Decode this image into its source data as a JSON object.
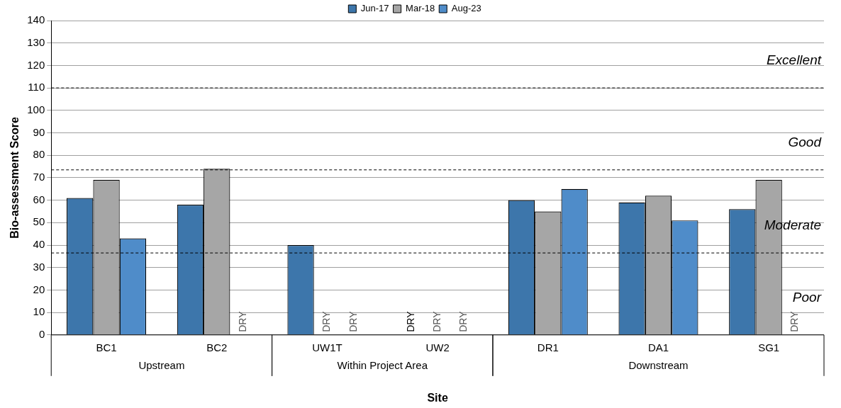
{
  "chart_data": {
    "type": "bar",
    "xlabel": "Site",
    "ylabel": "Bio-assessment Score",
    "categories": [
      "BC1",
      "BC2",
      "UW1T",
      "UW2",
      "DR1",
      "DA1",
      "SG1"
    ],
    "series": [
      {
        "name": "Jun-17",
        "color": "#3d76ab",
        "values": [
          61,
          58,
          40,
          null,
          60,
          59,
          56
        ],
        "value_labels": [
          null,
          null,
          null,
          "DRY",
          null,
          null,
          null
        ]
      },
      {
        "name": "Mar-18",
        "color": "#a6a6a6",
        "values": [
          69,
          74,
          null,
          null,
          55,
          62,
          69
        ],
        "value_labels": [
          null,
          null,
          "DRY",
          "DRY",
          null,
          null,
          null
        ]
      },
      {
        "name": "Aug-23",
        "color": "#4f8cc9",
        "values": [
          43,
          null,
          null,
          null,
          65,
          51,
          null
        ],
        "value_labels": [
          null,
          "DRY",
          "DRY",
          "DRY",
          null,
          null,
          "DRY"
        ]
      }
    ],
    "ylim": [
      0,
      140
    ],
    "yticks": [
      0,
      10,
      20,
      30,
      40,
      50,
      60,
      70,
      80,
      90,
      100,
      110,
      120,
      130,
      140
    ],
    "grid": "y",
    "legend": "top",
    "ref_lines": [
      {
        "axis": "y",
        "value": 110,
        "label": "Excellent",
        "line_style": "dashed",
        "color": "#000000"
      },
      {
        "axis": "y",
        "value": 73.5,
        "label": "Good",
        "line_style": "dashed",
        "color": "#000000"
      },
      {
        "axis": "y",
        "value": 36.5,
        "label": "Moderate",
        "line_style": "dashed",
        "color": "#000000"
      }
    ],
    "annotations": [
      "Poor",
      "Upstream",
      "Within Project Area",
      "Downstream"
    ]
  }
}
